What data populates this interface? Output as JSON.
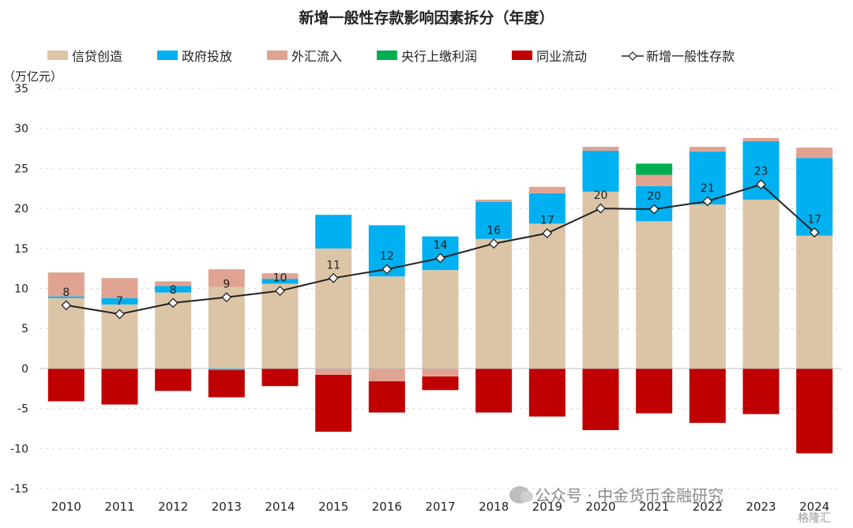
{
  "chart_data": {
    "type": "bar",
    "stacked": true,
    "title": "新增一般性存款影响因素拆分（年度）",
    "ylabel": "（万亿元）",
    "ylim": [
      -15,
      35
    ],
    "yticks": [
      -15,
      -10,
      -5,
      0,
      5,
      10,
      15,
      20,
      25,
      30,
      35
    ],
    "categories": [
      "2010",
      "2011",
      "2012",
      "2013",
      "2014",
      "2015",
      "2016",
      "2017",
      "2018",
      "2019",
      "2020",
      "2021",
      "2022",
      "2023",
      "2024"
    ],
    "series": [
      {
        "name": "信贷创造",
        "kind": "bar",
        "color": "#dcc5a6",
        "values": [
          8.8,
          8.0,
          9.5,
          10.2,
          10.6,
          15.0,
          11.5,
          12.3,
          16.2,
          18.1,
          22.1,
          18.4,
          20.5,
          21.1,
          16.6
        ]
      },
      {
        "name": "政府投放",
        "kind": "bar",
        "color": "#00b0f0",
        "values": [
          0.2,
          0.8,
          0.8,
          -0.2,
          0.6,
          4.2,
          6.4,
          4.2,
          4.6,
          3.8,
          5.1,
          4.4,
          6.6,
          7.3,
          9.7
        ]
      },
      {
        "name": "外汇流入",
        "kind": "bar",
        "color": "#e0a392",
        "values": [
          3.0,
          2.5,
          0.6,
          2.2,
          0.7,
          -0.8,
          -1.6,
          -1.0,
          0.3,
          0.8,
          0.5,
          1.4,
          0.6,
          0.4,
          1.3
        ]
      },
      {
        "name": "央行上缴利润",
        "kind": "bar",
        "color": "#00b050",
        "values": [
          0,
          0,
          0,
          0,
          0,
          0,
          0,
          0,
          0,
          0,
          0,
          1.4,
          0,
          0,
          0
        ]
      },
      {
        "name": "同业流动",
        "kind": "bar",
        "color": "#c00000",
        "values": [
          -4.1,
          -4.5,
          -2.8,
          -3.4,
          -2.2,
          -7.1,
          -3.9,
          -1.7,
          -5.5,
          -6.0,
          -7.7,
          -5.6,
          -6.8,
          -5.7,
          -10.6
        ]
      },
      {
        "name": "新增一般性存款",
        "kind": "line",
        "color": "#222222",
        "values": [
          7.9,
          6.8,
          8.2,
          8.9,
          9.7,
          11.3,
          12.4,
          13.8,
          15.6,
          16.9,
          20.0,
          19.9,
          20.9,
          23.0,
          17.0
        ],
        "labels": [
          "8",
          "7",
          "8",
          "9",
          "10",
          "11",
          "12",
          "14",
          "16",
          "17",
          "20",
          "20",
          "21",
          "23",
          "17"
        ]
      }
    ]
  },
  "watermark": {
    "text": "公众号 · 中金货币金融研究",
    "secondary": "格隆汇"
  }
}
